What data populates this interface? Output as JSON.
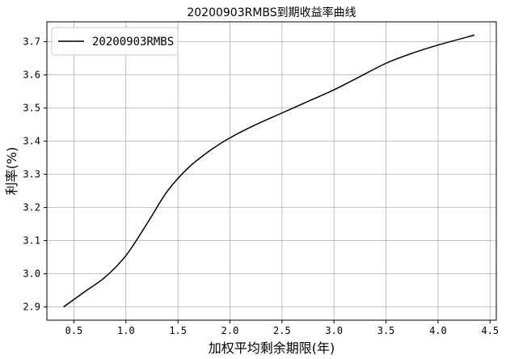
{
  "chart_data": {
    "type": "line",
    "title": "20200903RMBS到期收益率曲线",
    "xlabel": "加权平均剩余期限(年)",
    "ylabel": "利率(%)",
    "xlim": [
      0.24,
      4.56
    ],
    "ylim": [
      2.86,
      3.76
    ],
    "xticks": [
      0.5,
      1.0,
      1.5,
      2.0,
      2.5,
      3.0,
      3.5,
      4.0,
      4.5
    ],
    "xtick_labels": [
      "0.5",
      "1.0",
      "1.5",
      "2.0",
      "2.5",
      "3.0",
      "3.5",
      "4.0",
      "4.5"
    ],
    "yticks": [
      2.9,
      3.0,
      3.1,
      3.2,
      3.3,
      3.4,
      3.5,
      3.6,
      3.7
    ],
    "ytick_labels": [
      "2.9",
      "3.0",
      "3.1",
      "3.2",
      "3.3",
      "3.4",
      "3.5",
      "3.6",
      "3.7"
    ],
    "grid": true,
    "legend_position": "top-left",
    "series": [
      {
        "name": "20200903RMBS",
        "color": "#000000",
        "x": [
          0.4,
          0.6,
          0.8,
          1.0,
          1.2,
          1.4,
          1.6,
          1.8,
          2.0,
          2.25,
          2.5,
          2.75,
          3.0,
          3.25,
          3.5,
          3.75,
          4.0,
          4.35
        ],
        "y": [
          2.9,
          2.945,
          2.99,
          3.055,
          3.15,
          3.25,
          3.32,
          3.37,
          3.41,
          3.45,
          3.485,
          3.52,
          3.555,
          3.595,
          3.635,
          3.665,
          3.69,
          3.72
        ]
      }
    ]
  }
}
